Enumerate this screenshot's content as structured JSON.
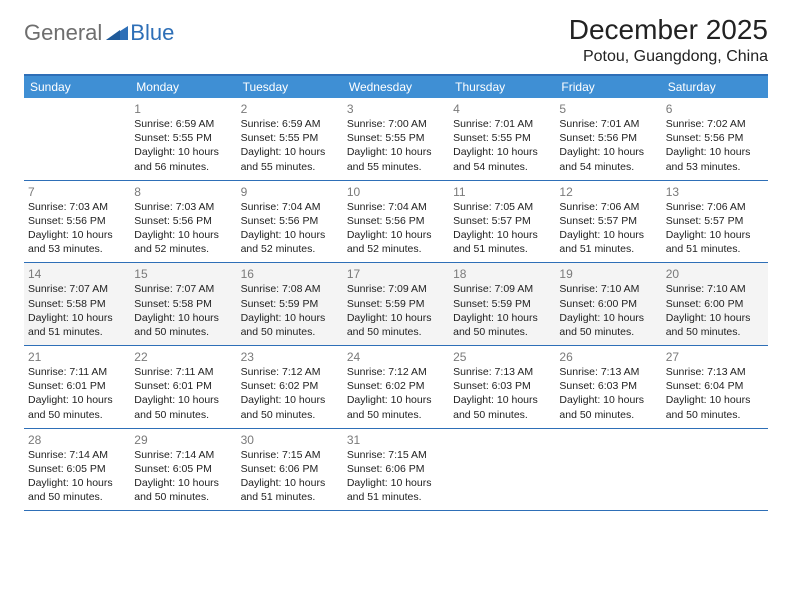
{
  "brand": {
    "part1": "General",
    "part2": "Blue"
  },
  "title": "December 2025",
  "location": "Potou, Guangdong, China",
  "colors": {
    "accent": "#2e6fb7",
    "header_bg": "#3f8fd4",
    "shade_bg": "#f4f4f4",
    "text": "#222222",
    "muted": "#7a7a7a",
    "logo_gray": "#6e6e6e"
  },
  "days_of_week": [
    "Sunday",
    "Monday",
    "Tuesday",
    "Wednesday",
    "Thursday",
    "Friday",
    "Saturday"
  ],
  "labels": {
    "sunrise": "Sunrise:",
    "sunset": "Sunset:",
    "daylight": "Daylight:"
  },
  "weeks": [
    {
      "shade": false,
      "cells": [
        {
          "blank": true
        },
        {
          "n": "1",
          "sunrise": "6:59 AM",
          "sunset": "5:55 PM",
          "daylight": "10 hours and 56 minutes."
        },
        {
          "n": "2",
          "sunrise": "6:59 AM",
          "sunset": "5:55 PM",
          "daylight": "10 hours and 55 minutes."
        },
        {
          "n": "3",
          "sunrise": "7:00 AM",
          "sunset": "5:55 PM",
          "daylight": "10 hours and 55 minutes."
        },
        {
          "n": "4",
          "sunrise": "7:01 AM",
          "sunset": "5:55 PM",
          "daylight": "10 hours and 54 minutes."
        },
        {
          "n": "5",
          "sunrise": "7:01 AM",
          "sunset": "5:56 PM",
          "daylight": "10 hours and 54 minutes."
        },
        {
          "n": "6",
          "sunrise": "7:02 AM",
          "sunset": "5:56 PM",
          "daylight": "10 hours and 53 minutes."
        }
      ]
    },
    {
      "shade": false,
      "cells": [
        {
          "n": "7",
          "sunrise": "7:03 AM",
          "sunset": "5:56 PM",
          "daylight": "10 hours and 53 minutes."
        },
        {
          "n": "8",
          "sunrise": "7:03 AM",
          "sunset": "5:56 PM",
          "daylight": "10 hours and 52 minutes."
        },
        {
          "n": "9",
          "sunrise": "7:04 AM",
          "sunset": "5:56 PM",
          "daylight": "10 hours and 52 minutes."
        },
        {
          "n": "10",
          "sunrise": "7:04 AM",
          "sunset": "5:56 PM",
          "daylight": "10 hours and 52 minutes."
        },
        {
          "n": "11",
          "sunrise": "7:05 AM",
          "sunset": "5:57 PM",
          "daylight": "10 hours and 51 minutes."
        },
        {
          "n": "12",
          "sunrise": "7:06 AM",
          "sunset": "5:57 PM",
          "daylight": "10 hours and 51 minutes."
        },
        {
          "n": "13",
          "sunrise": "7:06 AM",
          "sunset": "5:57 PM",
          "daylight": "10 hours and 51 minutes."
        }
      ]
    },
    {
      "shade": true,
      "cells": [
        {
          "n": "14",
          "sunrise": "7:07 AM",
          "sunset": "5:58 PM",
          "daylight": "10 hours and 51 minutes."
        },
        {
          "n": "15",
          "sunrise": "7:07 AM",
          "sunset": "5:58 PM",
          "daylight": "10 hours and 50 minutes."
        },
        {
          "n": "16",
          "sunrise": "7:08 AM",
          "sunset": "5:59 PM",
          "daylight": "10 hours and 50 minutes."
        },
        {
          "n": "17",
          "sunrise": "7:09 AM",
          "sunset": "5:59 PM",
          "daylight": "10 hours and 50 minutes."
        },
        {
          "n": "18",
          "sunrise": "7:09 AM",
          "sunset": "5:59 PM",
          "daylight": "10 hours and 50 minutes."
        },
        {
          "n": "19",
          "sunrise": "7:10 AM",
          "sunset": "6:00 PM",
          "daylight": "10 hours and 50 minutes."
        },
        {
          "n": "20",
          "sunrise": "7:10 AM",
          "sunset": "6:00 PM",
          "daylight": "10 hours and 50 minutes."
        }
      ]
    },
    {
      "shade": false,
      "cells": [
        {
          "n": "21",
          "sunrise": "7:11 AM",
          "sunset": "6:01 PM",
          "daylight": "10 hours and 50 minutes."
        },
        {
          "n": "22",
          "sunrise": "7:11 AM",
          "sunset": "6:01 PM",
          "daylight": "10 hours and 50 minutes."
        },
        {
          "n": "23",
          "sunrise": "7:12 AM",
          "sunset": "6:02 PM",
          "daylight": "10 hours and 50 minutes."
        },
        {
          "n": "24",
          "sunrise": "7:12 AM",
          "sunset": "6:02 PM",
          "daylight": "10 hours and 50 minutes."
        },
        {
          "n": "25",
          "sunrise": "7:13 AM",
          "sunset": "6:03 PM",
          "daylight": "10 hours and 50 minutes."
        },
        {
          "n": "26",
          "sunrise": "7:13 AM",
          "sunset": "6:03 PM",
          "daylight": "10 hours and 50 minutes."
        },
        {
          "n": "27",
          "sunrise": "7:13 AM",
          "sunset": "6:04 PM",
          "daylight": "10 hours and 50 minutes."
        }
      ]
    },
    {
      "shade": false,
      "cells": [
        {
          "n": "28",
          "sunrise": "7:14 AM",
          "sunset": "6:05 PM",
          "daylight": "10 hours and 50 minutes."
        },
        {
          "n": "29",
          "sunrise": "7:14 AM",
          "sunset": "6:05 PM",
          "daylight": "10 hours and 50 minutes."
        },
        {
          "n": "30",
          "sunrise": "7:15 AM",
          "sunset": "6:06 PM",
          "daylight": "10 hours and 51 minutes."
        },
        {
          "n": "31",
          "sunrise": "7:15 AM",
          "sunset": "6:06 PM",
          "daylight": "10 hours and 51 minutes."
        },
        {
          "blank": true
        },
        {
          "blank": true
        },
        {
          "blank": true
        }
      ]
    }
  ]
}
